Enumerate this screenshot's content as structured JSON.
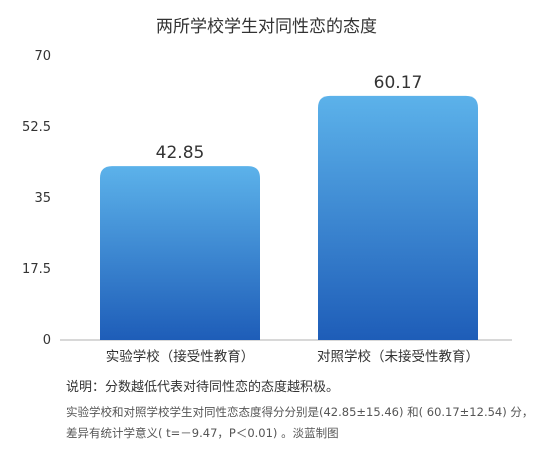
{
  "chart_data": {
    "type": "bar",
    "title": "两所学校学生对同性恋的态度",
    "categories": [
      "实验学校（接受性教育）",
      "对照学校（未接受性教育）"
    ],
    "values": [
      42.85,
      60.17
    ],
    "value_labels": [
      "42.85",
      "60.17"
    ],
    "ylim": [
      0,
      70
    ],
    "yticks": [
      0,
      17.5,
      35,
      52.5,
      70
    ],
    "ytick_labels": [
      "0",
      "17.5",
      "35",
      "52.5",
      "70"
    ],
    "grid": false,
    "bar_color_top": "#5cb2ea",
    "bar_color_bottom": "#1e5db8"
  },
  "notes": {
    "main": "说明：分数越低代表对待同性恋的态度越积极。",
    "line1": "实验学校和对照学校学生对同性恋态度得分分别是(42.85±15.46) 和( 60.17±12.54) 分，",
    "line2": "差异有统计学意义( t=－9.47，P＜0.01) 。淡蓝制图"
  }
}
